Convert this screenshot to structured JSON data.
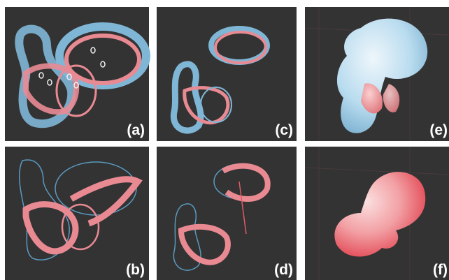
{
  "panels": [
    {
      "label": "(a)"
    },
    {
      "label": "(c)"
    },
    {
      "label": "(e)"
    },
    {
      "label": "(b)"
    },
    {
      "label": "(d)"
    },
    {
      "label": "(f)"
    }
  ]
}
